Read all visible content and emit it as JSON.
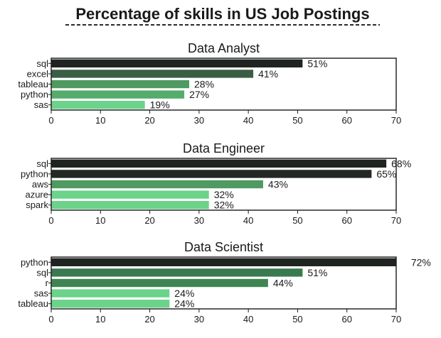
{
  "chart_data": {
    "type": "bar",
    "orientation": "horizontal",
    "title": "Percentage of skills in US Job Postings",
    "title_underline": "dashed",
    "xlim": [
      0,
      70
    ],
    "xticks": [
      0,
      10,
      20,
      30,
      40,
      50,
      60,
      70
    ],
    "grid": false,
    "palette": "dark-to-light green",
    "subplots": [
      {
        "title": "Data Analyst",
        "categories": [
          "sql",
          "excel",
          "tableau",
          "python",
          "sas"
        ],
        "values": [
          51,
          41,
          28,
          27,
          19
        ],
        "labels": [
          "51%",
          "41%",
          "28%",
          "27%",
          "19%"
        ],
        "colors": [
          "#1f2420",
          "#3a5e44",
          "#4f9a61",
          "#54ad6a",
          "#6bd38a"
        ]
      },
      {
        "title": "Data Engineer",
        "categories": [
          "sql",
          "python",
          "aws",
          "azure",
          "spark"
        ],
        "values": [
          68,
          65,
          43,
          32,
          32
        ],
        "labels": [
          "68%",
          "65%",
          "43%",
          "32%",
          "32%"
        ],
        "colors": [
          "#1f2420",
          "#222824",
          "#4f9a61",
          "#6bd38a",
          "#6bd38a"
        ]
      },
      {
        "title": "Data Scientist",
        "categories": [
          "python",
          "sql",
          "r",
          "sas",
          "tableau"
        ],
        "values": [
          72,
          51,
          44,
          24,
          24
        ],
        "labels": [
          "72%",
          "51%",
          "44%",
          "24%",
          "24%"
        ],
        "colors": [
          "#1f2420",
          "#3a7a50",
          "#3f8552",
          "#6bd38a",
          "#6bd38a"
        ]
      }
    ]
  }
}
